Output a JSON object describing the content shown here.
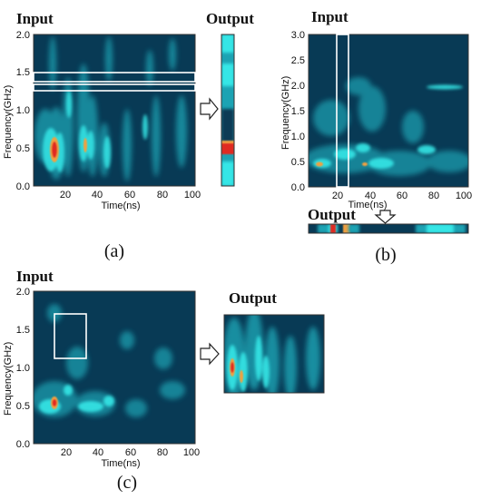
{
  "colors": {
    "background": "#083a55",
    "cyan": "#35e6e6",
    "teal": "#1ca3b3",
    "red": "#e02a24",
    "orange": "#f0a040",
    "white": "#ffffff"
  },
  "panel_a": {
    "input_title": "Input",
    "output_title": "Output",
    "ylabel": "Frequency(GHz)",
    "xlabel": "Time(ns)",
    "yticks": [
      "2.0",
      "1.5",
      "1.0",
      "0.5",
      "0.0"
    ],
    "xticks": [
      "20",
      "40",
      "60",
      "80",
      "100"
    ],
    "caption": "(a)"
  },
  "panel_b": {
    "input_title": "Input",
    "output_title": "Output",
    "ylabel": "Frequency(GHz)",
    "xlabel": "Time(ns)",
    "yticks": [
      "3.0",
      "2.5",
      "2.0",
      "1.5",
      "1.0",
      "0.5",
      "0.0"
    ],
    "xticks": [
      "20",
      "40",
      "60",
      "80",
      "100"
    ],
    "caption": "(b)"
  },
  "panel_c": {
    "input_title": "Input",
    "output_title": "Output",
    "ylabel": "Frequency(GHz)",
    "xlabel": "Time(ns)",
    "yticks": [
      "2.0",
      "1.5",
      "1.0",
      "0.5",
      "0.0"
    ],
    "xticks": [
      "20",
      "40",
      "60",
      "80",
      "100"
    ],
    "caption": "(c)"
  }
}
